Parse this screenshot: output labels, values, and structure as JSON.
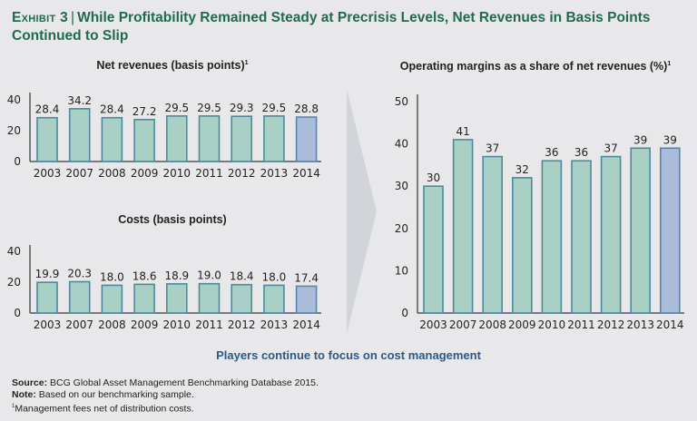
{
  "header": {
    "exhibit_label": "Exhibit 3",
    "separator": "|",
    "title": "While Profitability Remained Steady at Precrisis Levels, Net Revenues in Basis Points Continued to Slip"
  },
  "colors": {
    "title": "#1e6b52",
    "subtitle": "#2a5a8c",
    "bar_fill": "#a9d0c4",
    "bar_stroke": "#4b8aa0",
    "highlight_fill": "#a9bcda",
    "highlight_stroke": "#5a85aa",
    "arrow": "#d1d5d9",
    "axis": "#555555"
  },
  "chart_data": [
    {
      "id": "net-revenues",
      "type": "bar",
      "title": "Net revenues (basis points)",
      "title_footnote_marker": "1",
      "categories": [
        "2003",
        "2007",
        "2008",
        "2009",
        "2010",
        "2011",
        "2012",
        "2013",
        "2014"
      ],
      "values": [
        28.4,
        34.2,
        28.4,
        27.2,
        29.5,
        29.5,
        29.3,
        29.5,
        28.8
      ],
      "labels": [
        "28.4",
        "34.2",
        "28.4",
        "27.2",
        "29.5",
        "29.5",
        "29.3",
        "29.5",
        "28.8"
      ],
      "highlight_index": 8,
      "yticks": [
        0,
        20,
        40
      ],
      "ylim": [
        0,
        42
      ],
      "xlabel": "",
      "ylabel": "",
      "grid": false
    },
    {
      "id": "costs",
      "type": "bar",
      "title": "Costs (basis points)",
      "title_footnote_marker": "",
      "categories": [
        "2003",
        "2007",
        "2008",
        "2009",
        "2010",
        "2011",
        "2012",
        "2013",
        "2014"
      ],
      "values": [
        19.9,
        20.3,
        18.0,
        18.6,
        18.9,
        19.0,
        18.4,
        18.0,
        17.4
      ],
      "labels": [
        "19.9",
        "20.3",
        "18.0",
        "18.6",
        "18.9",
        "19.0",
        "18.4",
        "18.0",
        "17.4"
      ],
      "highlight_index": 8,
      "yticks": [
        0,
        20,
        40
      ],
      "ylim": [
        0,
        42
      ],
      "xlabel": "",
      "ylabel": "",
      "grid": false
    },
    {
      "id": "operating-margins",
      "type": "bar",
      "title": "Operating margins as a share of net revenues (%)",
      "title_footnote_marker": "1",
      "categories": [
        "2003",
        "2007",
        "2008",
        "2009",
        "2010",
        "2011",
        "2012",
        "2013",
        "2014"
      ],
      "values": [
        30,
        41,
        37,
        32,
        36,
        36,
        37,
        39,
        39
      ],
      "labels": [
        "30",
        "41",
        "37",
        "32",
        "36",
        "36",
        "37",
        "39",
        "39"
      ],
      "highlight_index": 8,
      "yticks": [
        0,
        10,
        20,
        30,
        40,
        50
      ],
      "ylim": [
        0,
        50
      ],
      "xlabel": "",
      "ylabel": "",
      "grid": false
    }
  ],
  "subtitle": "Players continue to focus on cost management",
  "footnotes": {
    "source_label": "Source:",
    "source_text": "BCG Global Asset Management Benchmarking Database 2015.",
    "note_label": "Note:",
    "note_text": "Based on our benchmarking sample.",
    "footnote_marker": "1",
    "footnote_text": "Management fees net of distribution costs."
  }
}
